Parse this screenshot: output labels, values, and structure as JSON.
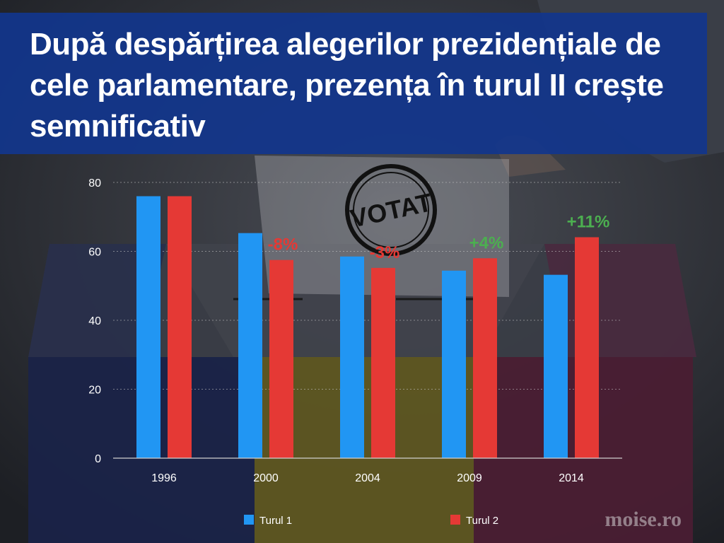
{
  "title": "După despărțirea alegerilor prezidențiale de cele parlamentare, prezența în turul II crește semnificativ",
  "stamp_text": "VOTAT",
  "watermark": "moise.ro",
  "chart_data": {
    "type": "bar",
    "title": "",
    "xlabel": "",
    "ylabel": "",
    "categories": [
      "1996",
      "2000",
      "2004",
      "2009",
      "2014"
    ],
    "series": [
      {
        "name": "Turul 1",
        "color": "#2196f3",
        "values": [
          76.0,
          65.3,
          58.5,
          54.4,
          53.2
        ]
      },
      {
        "name": "Turul 2",
        "color": "#e53935",
        "values": [
          76.0,
          57.5,
          55.2,
          58.0,
          64.1
        ]
      }
    ],
    "annotations": [
      {
        "category": "2000",
        "text": "-8%",
        "color": "#e53935"
      },
      {
        "category": "2004",
        "text": "-3%",
        "color": "#e53935"
      },
      {
        "category": "2009",
        "text": "+4%",
        "color": "#4caf50"
      },
      {
        "category": "2014",
        "text": "+11%",
        "color": "#4caf50"
      }
    ],
    "ylim": [
      0,
      80
    ],
    "yticks": [
      0,
      20,
      40,
      60,
      80
    ],
    "grid": true,
    "legend_position": "bottom-center"
  }
}
